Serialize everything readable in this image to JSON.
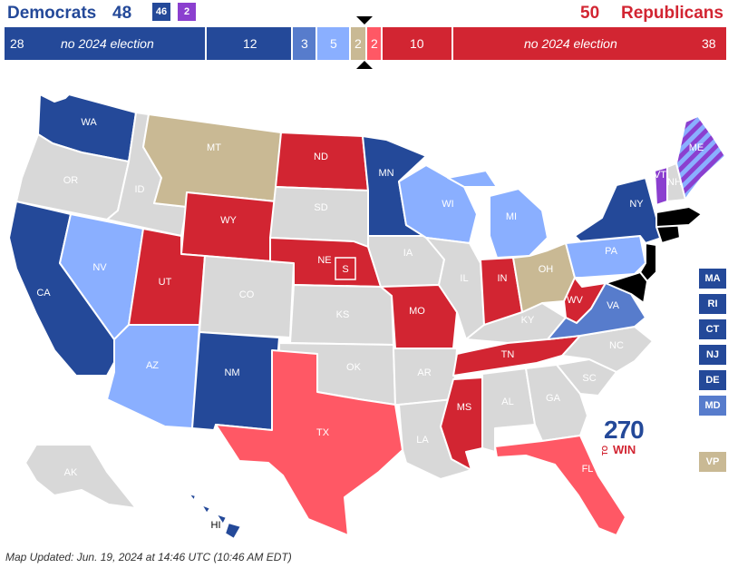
{
  "header": {
    "dem_title": "Democrats",
    "dem_total": "48",
    "dem_badge": "46",
    "ind_badge": "2",
    "rep_total": "50",
    "rep_title": "Republicans"
  },
  "bar": {
    "dem_no_election_count": "28",
    "no_election_label": "no 2024 election",
    "safe_dem": "12",
    "likely_dem": "3",
    "lean_dem": "5",
    "tossup": "2",
    "lean_rep": "2",
    "likely_rep": "10",
    "rep_no_election_count": "38"
  },
  "colors": {
    "safe_dem": "#244999",
    "likely_dem": "#577ccc",
    "lean_dem": "#8aafff",
    "tossup": "#c9b994",
    "lean_rep": "#ff5865",
    "safe_rep": "#d22532",
    "independent": "#8b3fcf",
    "no_election": "#d8d8d8"
  },
  "states": [
    {
      "abbr": "WA",
      "rating": "safe_dem"
    },
    {
      "abbr": "OR",
      "rating": "no_election"
    },
    {
      "abbr": "CA",
      "rating": "safe_dem"
    },
    {
      "abbr": "NV",
      "rating": "lean_dem"
    },
    {
      "abbr": "ID",
      "rating": "no_election"
    },
    {
      "abbr": "MT",
      "rating": "tossup"
    },
    {
      "abbr": "WY",
      "rating": "safe_rep"
    },
    {
      "abbr": "UT",
      "rating": "safe_rep"
    },
    {
      "abbr": "AZ",
      "rating": "lean_dem"
    },
    {
      "abbr": "CO",
      "rating": "no_election"
    },
    {
      "abbr": "NM",
      "rating": "safe_dem"
    },
    {
      "abbr": "ND",
      "rating": "safe_rep"
    },
    {
      "abbr": "SD",
      "rating": "no_election"
    },
    {
      "abbr": "NE",
      "rating": "safe_rep"
    },
    {
      "abbr": "KS",
      "rating": "no_election"
    },
    {
      "abbr": "OK",
      "rating": "no_election"
    },
    {
      "abbr": "TX",
      "rating": "lean_rep"
    },
    {
      "abbr": "MN",
      "rating": "safe_dem"
    },
    {
      "abbr": "IA",
      "rating": "no_election"
    },
    {
      "abbr": "MO",
      "rating": "safe_rep"
    },
    {
      "abbr": "AR",
      "rating": "no_election"
    },
    {
      "abbr": "LA",
      "rating": "no_election"
    },
    {
      "abbr": "WI",
      "rating": "lean_dem"
    },
    {
      "abbr": "IL",
      "rating": "no_election"
    },
    {
      "abbr": "MS",
      "rating": "safe_rep"
    },
    {
      "abbr": "MI",
      "rating": "lean_dem"
    },
    {
      "abbr": "IN",
      "rating": "safe_rep"
    },
    {
      "abbr": "KY",
      "rating": "no_election"
    },
    {
      "abbr": "TN",
      "rating": "safe_rep"
    },
    {
      "abbr": "AL",
      "rating": "no_election"
    },
    {
      "abbr": "OH",
      "rating": "tossup"
    },
    {
      "abbr": "WV",
      "rating": "safe_rep"
    },
    {
      "abbr": "VA",
      "rating": "likely_dem"
    },
    {
      "abbr": "NC",
      "rating": "no_election"
    },
    {
      "abbr": "SC",
      "rating": "no_election"
    },
    {
      "abbr": "GA",
      "rating": "no_election"
    },
    {
      "abbr": "FL",
      "rating": "lean_rep"
    },
    {
      "abbr": "PA",
      "rating": "lean_dem"
    },
    {
      "abbr": "NY",
      "rating": "safe_dem"
    },
    {
      "abbr": "VT",
      "rating": "independent"
    },
    {
      "abbr": "NH",
      "rating": "no_election"
    },
    {
      "abbr": "ME",
      "rating": "independent"
    },
    {
      "abbr": "AK",
      "rating": "no_election"
    },
    {
      "abbr": "HI",
      "rating": "safe_dem"
    },
    {
      "abbr": "S",
      "rating": "safe_rep"
    }
  ],
  "side_states": [
    {
      "abbr": "MA",
      "rating": "safe_dem"
    },
    {
      "abbr": "RI",
      "rating": "safe_dem"
    },
    {
      "abbr": "CT",
      "rating": "safe_dem"
    },
    {
      "abbr": "NJ",
      "rating": "safe_dem"
    },
    {
      "abbr": "DE",
      "rating": "safe_dem"
    },
    {
      "abbr": "MD",
      "rating": "likely_dem"
    }
  ],
  "vp_label": "VP",
  "logo": {
    "number": "270",
    "to": "TO",
    "win": "WIN"
  },
  "footer": "Map Updated: Jun. 19, 2024 at 14:46 UTC (10:46 AM EDT)"
}
